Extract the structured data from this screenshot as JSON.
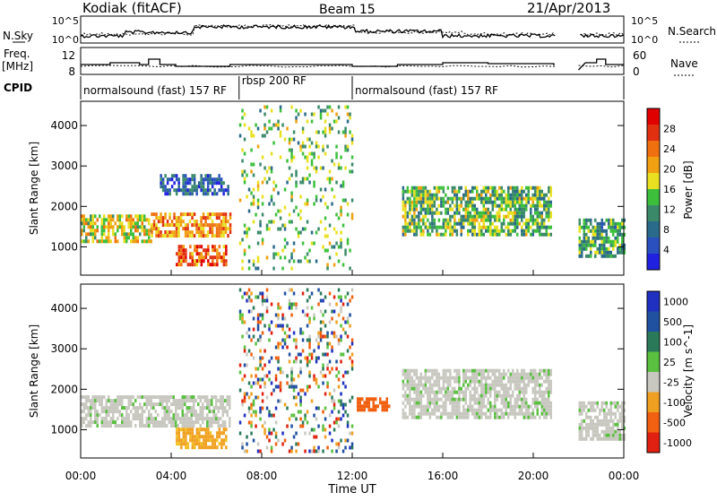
{
  "header": {
    "title": "Kodiak (fitACF)",
    "beam": "Beam 15",
    "date": "21/Apr/2013"
  },
  "noise_panel": {
    "left_label": "N.Sky",
    "right_label": "N.Search",
    "left_ticks": [
      "10^5",
      "10^0"
    ],
    "right_ticks": [
      "10^5",
      "10^0"
    ]
  },
  "freq_panel": {
    "left_label_1": "Freq.",
    "left_label_2": "[MHz]",
    "right_label": "Nave",
    "left_ticks": [
      "12",
      "8"
    ],
    "right_ticks": [
      "60",
      "0"
    ]
  },
  "cpid_panel": {
    "label": "CPID",
    "segments": [
      {
        "start": 0.0,
        "end": 7.0,
        "label": "normalsound (fast) 157 RF"
      },
      {
        "start": 7.0,
        "end": 12.0,
        "label": "rbsp 200 RF"
      },
      {
        "start": 12.0,
        "end": 24.0,
        "label": "normalsound (fast) 157 RF"
      }
    ]
  },
  "x_axis": {
    "title": "Time UT",
    "ticks": [
      "00:00",
      "04:00",
      "08:00",
      "12:00",
      "16:00",
      "20:00",
      "00:00"
    ],
    "range_hours": [
      0,
      24
    ]
  },
  "colors": {
    "power": [
      "#2020e0",
      "#2a50c0",
      "#2a6a8a",
      "#3a8a6a",
      "#3cc03c",
      "#e8e020",
      "#f0a010",
      "#f07010",
      "#e03010",
      "#e00000"
    ],
    "velocity": [
      "#2030c0",
      "#2050a0",
      "#2a7a5a",
      "#5ac040",
      "#c8c8c0",
      "#f0a020",
      "#f06010",
      "#e02010"
    ]
  },
  "chart_data": [
    {
      "type": "heatmap",
      "title": "",
      "ylabel": "Slant Range [km]",
      "ylim": [
        300,
        4600
      ],
      "yticks": [
        "1000",
        "2000",
        "3000",
        "4000"
      ],
      "colorbar": {
        "label": "Power [dB]",
        "ticks": [
          "4",
          "8",
          "12",
          "16",
          "20",
          "24",
          "28"
        ],
        "range": [
          0,
          32
        ]
      },
      "regions": [
        {
          "t0": 0.0,
          "t1": 3.1,
          "r0": 1100,
          "r1": 1800,
          "value": 18
        },
        {
          "t0": 3.1,
          "t1": 6.6,
          "r0": 1250,
          "r1": 1850,
          "value": 22
        },
        {
          "t0": 4.2,
          "t1": 6.4,
          "r0": 600,
          "r1": 1050,
          "value": 25
        },
        {
          "t0": 3.5,
          "t1": 6.5,
          "r0": 2300,
          "r1": 2800,
          "value": 6
        },
        {
          "t0": 7.0,
          "t1": 12.0,
          "r0": 500,
          "r1": 4500,
          "value": 14
        },
        {
          "t0": 14.2,
          "t1": 20.8,
          "r0": 1300,
          "r1": 2500,
          "value": 14
        },
        {
          "t0": 22.0,
          "t1": 24.0,
          "r0": 800,
          "r1": 1700,
          "value": 12
        }
      ]
    },
    {
      "type": "heatmap",
      "title": "",
      "ylabel": "Slant Range [km]",
      "ylim": [
        300,
        4600
      ],
      "yticks": [
        "1000",
        "2000",
        "3000",
        "4000"
      ],
      "colorbar": {
        "label": "Velocity [m s^-1]",
        "ticks": [
          "1000",
          "500",
          "100",
          "25",
          "-25",
          "-100",
          "-500",
          "-1000"
        ]
      },
      "regions": [
        {
          "t0": 0.0,
          "t1": 6.6,
          "r0": 1100,
          "r1": 1850,
          "value": 0
        },
        {
          "t0": 4.2,
          "t1": 6.4,
          "r0": 600,
          "r1": 1050,
          "value": -100
        },
        {
          "t0": 7.0,
          "t1": 12.0,
          "r0": 500,
          "r1": 4500,
          "value": "mixed"
        },
        {
          "t0": 12.2,
          "t1": 13.6,
          "r0": 1500,
          "r1": 1800,
          "value": -500
        },
        {
          "t0": 14.2,
          "t1": 20.8,
          "r0": 1300,
          "r1": 2500,
          "value": 0
        },
        {
          "t0": 22.0,
          "t1": 24.0,
          "r0": 800,
          "r1": 1700,
          "value": 0
        }
      ]
    }
  ]
}
